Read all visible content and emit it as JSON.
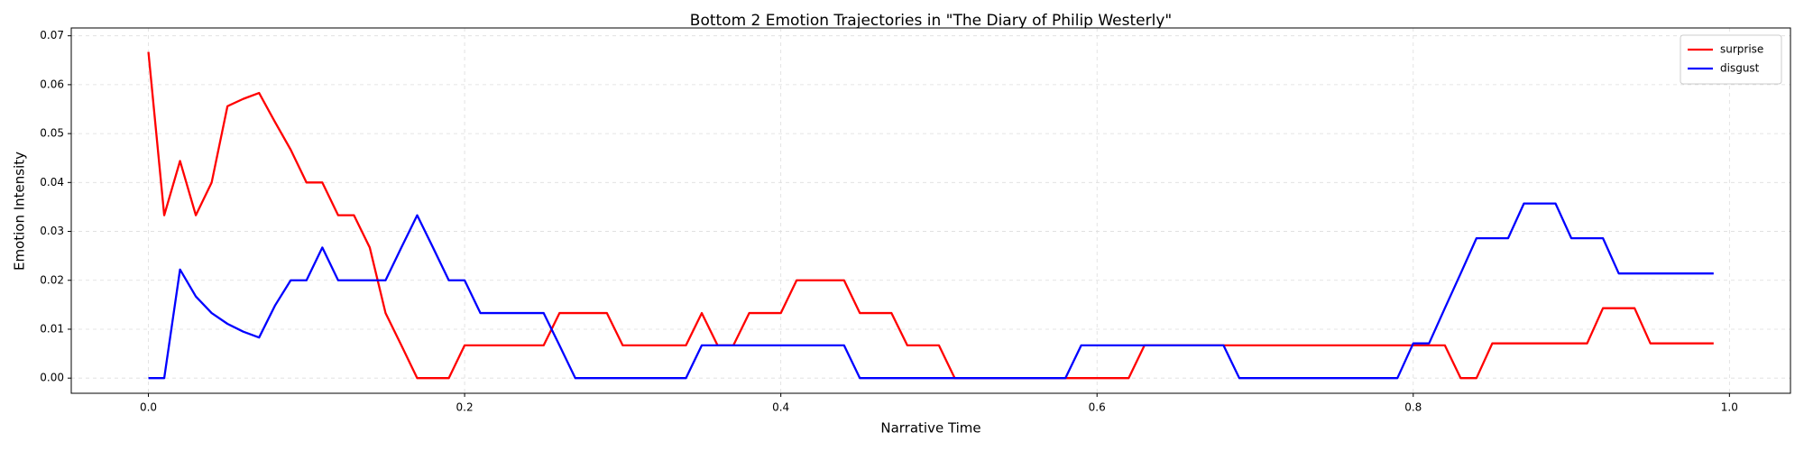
{
  "chart_data": {
    "type": "line",
    "title": "Bottom 2 Emotion Trajectories in \"The Diary of Philip Westerly\"",
    "x_label": "Narrative Time",
    "y_label": "Emotion Intensity",
    "x": [
      0,
      0.01,
      0.02,
      0.03,
      0.04,
      0.05,
      0.06,
      0.07,
      0.08,
      0.09,
      0.1,
      0.11,
      0.12,
      0.13,
      0.14,
      0.15,
      0.16,
      0.17,
      0.18,
      0.19,
      0.2,
      0.21,
      0.22,
      0.23,
      0.24,
      0.25,
      0.26,
      0.27,
      0.28,
      0.29,
      0.3,
      0.31,
      0.32,
      0.33,
      0.34,
      0.35,
      0.36,
      0.37,
      0.38,
      0.39,
      0.4,
      0.41,
      0.42,
      0.43,
      0.44,
      0.45,
      0.46,
      0.47,
      0.48,
      0.49,
      0.5,
      0.51,
      0.52,
      0.53,
      0.54,
      0.55,
      0.56,
      0.57,
      0.58,
      0.59,
      0.6,
      0.61,
      0.62,
      0.63,
      0.64,
      0.65,
      0.66,
      0.67,
      0.68,
      0.69,
      0.7,
      0.71,
      0.72,
      0.73,
      0.74,
      0.75,
      0.76,
      0.77,
      0.78,
      0.79,
      0.8,
      0.81,
      0.82,
      0.83,
      0.84,
      0.85,
      0.86,
      0.87,
      0.88,
      0.89,
      0.9,
      0.91,
      0.92,
      0.93,
      0.94,
      0.95,
      0.96,
      0.97,
      0.98,
      0.99
    ],
    "series": [
      {
        "name": "surprise",
        "color": "#ff0000",
        "values": [
          0.0667,
          0.0333,
          0.0444,
          0.0333,
          0.04,
          0.0556,
          0.0571,
          0.0583,
          0.0524,
          0.0467,
          0.04,
          0.04,
          0.0333,
          0.0333,
          0.0267,
          0.0133,
          0.0067,
          0,
          0,
          0,
          0.0067,
          0.0067,
          0.0067,
          0.0067,
          0.0067,
          0.0067,
          0.0133,
          0.0133,
          0.0133,
          0.0133,
          0.0067,
          0.0067,
          0.0067,
          0.0067,
          0.0067,
          0.0133,
          0.0067,
          0.0067,
          0.0133,
          0.0133,
          0.0133,
          0.02,
          0.02,
          0.02,
          0.02,
          0.0133,
          0.0133,
          0.0133,
          0.0067,
          0.0067,
          0.0067,
          0,
          0,
          0,
          0,
          0,
          0,
          0,
          0,
          0,
          0,
          0,
          0,
          0.0067,
          0.0067,
          0.0067,
          0.0067,
          0.0067,
          0.0067,
          0.0067,
          0.0067,
          0.0067,
          0.0067,
          0.0067,
          0.0067,
          0.0067,
          0.0067,
          0.0067,
          0.0067,
          0.0067,
          0.0067,
          0.0067,
          0.0067,
          0,
          0,
          0.0071,
          0.0071,
          0.0071,
          0.0071,
          0.0071,
          0.0071,
          0.0071,
          0.0143,
          0.0143,
          0.0143,
          0.0071,
          0.0071,
          0.0071,
          0.0071,
          0.0071
        ]
      },
      {
        "name": "disgust",
        "color": "#0000ff",
        "values": [
          0,
          0,
          0.0222,
          0.0167,
          0.0133,
          0.0111,
          0.0095,
          0.0083,
          0.0148,
          0.02,
          0.02,
          0.0267,
          0.02,
          0.02,
          0.02,
          0.02,
          0.0267,
          0.0333,
          0.0267,
          0.02,
          0.02,
          0.0133,
          0.0133,
          0.0133,
          0.0133,
          0.0133,
          0.0067,
          0,
          0,
          0,
          0,
          0,
          0,
          0,
          0,
          0.0067,
          0.0067,
          0.0067,
          0.0067,
          0.0067,
          0.0067,
          0.0067,
          0.0067,
          0.0067,
          0.0067,
          0,
          0,
          0,
          0,
          0,
          0,
          0,
          0,
          0,
          0,
          0,
          0,
          0,
          0,
          0.0067,
          0.0067,
          0.0067,
          0.0067,
          0.0067,
          0.0067,
          0.0067,
          0.0067,
          0.0067,
          0.0067,
          0,
          0,
          0,
          0,
          0,
          0,
          0,
          0,
          0,
          0,
          0,
          0.0071,
          0.0071,
          0.0143,
          0.0214,
          0.0286,
          0.0286,
          0.0286,
          0.0357,
          0.0357,
          0.0357,
          0.0286,
          0.0286,
          0.0286,
          0.0214,
          0.0214,
          0.0214,
          0.0214,
          0.0214,
          0.0214,
          0.0214
        ]
      }
    ],
    "xlim": [
      -0.0488,
      1.0386
    ],
    "ylim": [
      -0.0031,
      0.0716
    ],
    "xticks": [
      {
        "value": 0,
        "label": "0.0"
      },
      0.2,
      0.4,
      0.6,
      0.8,
      {
        "value": 1,
        "label": "1.0"
      }
    ],
    "yticks": [
      {
        "value": 0,
        "label": "0.00"
      },
      0.01,
      0.02,
      0.03,
      0.04,
      0.05,
      0.06,
      0.07
    ],
    "grid": true,
    "legend": "upper right"
  }
}
